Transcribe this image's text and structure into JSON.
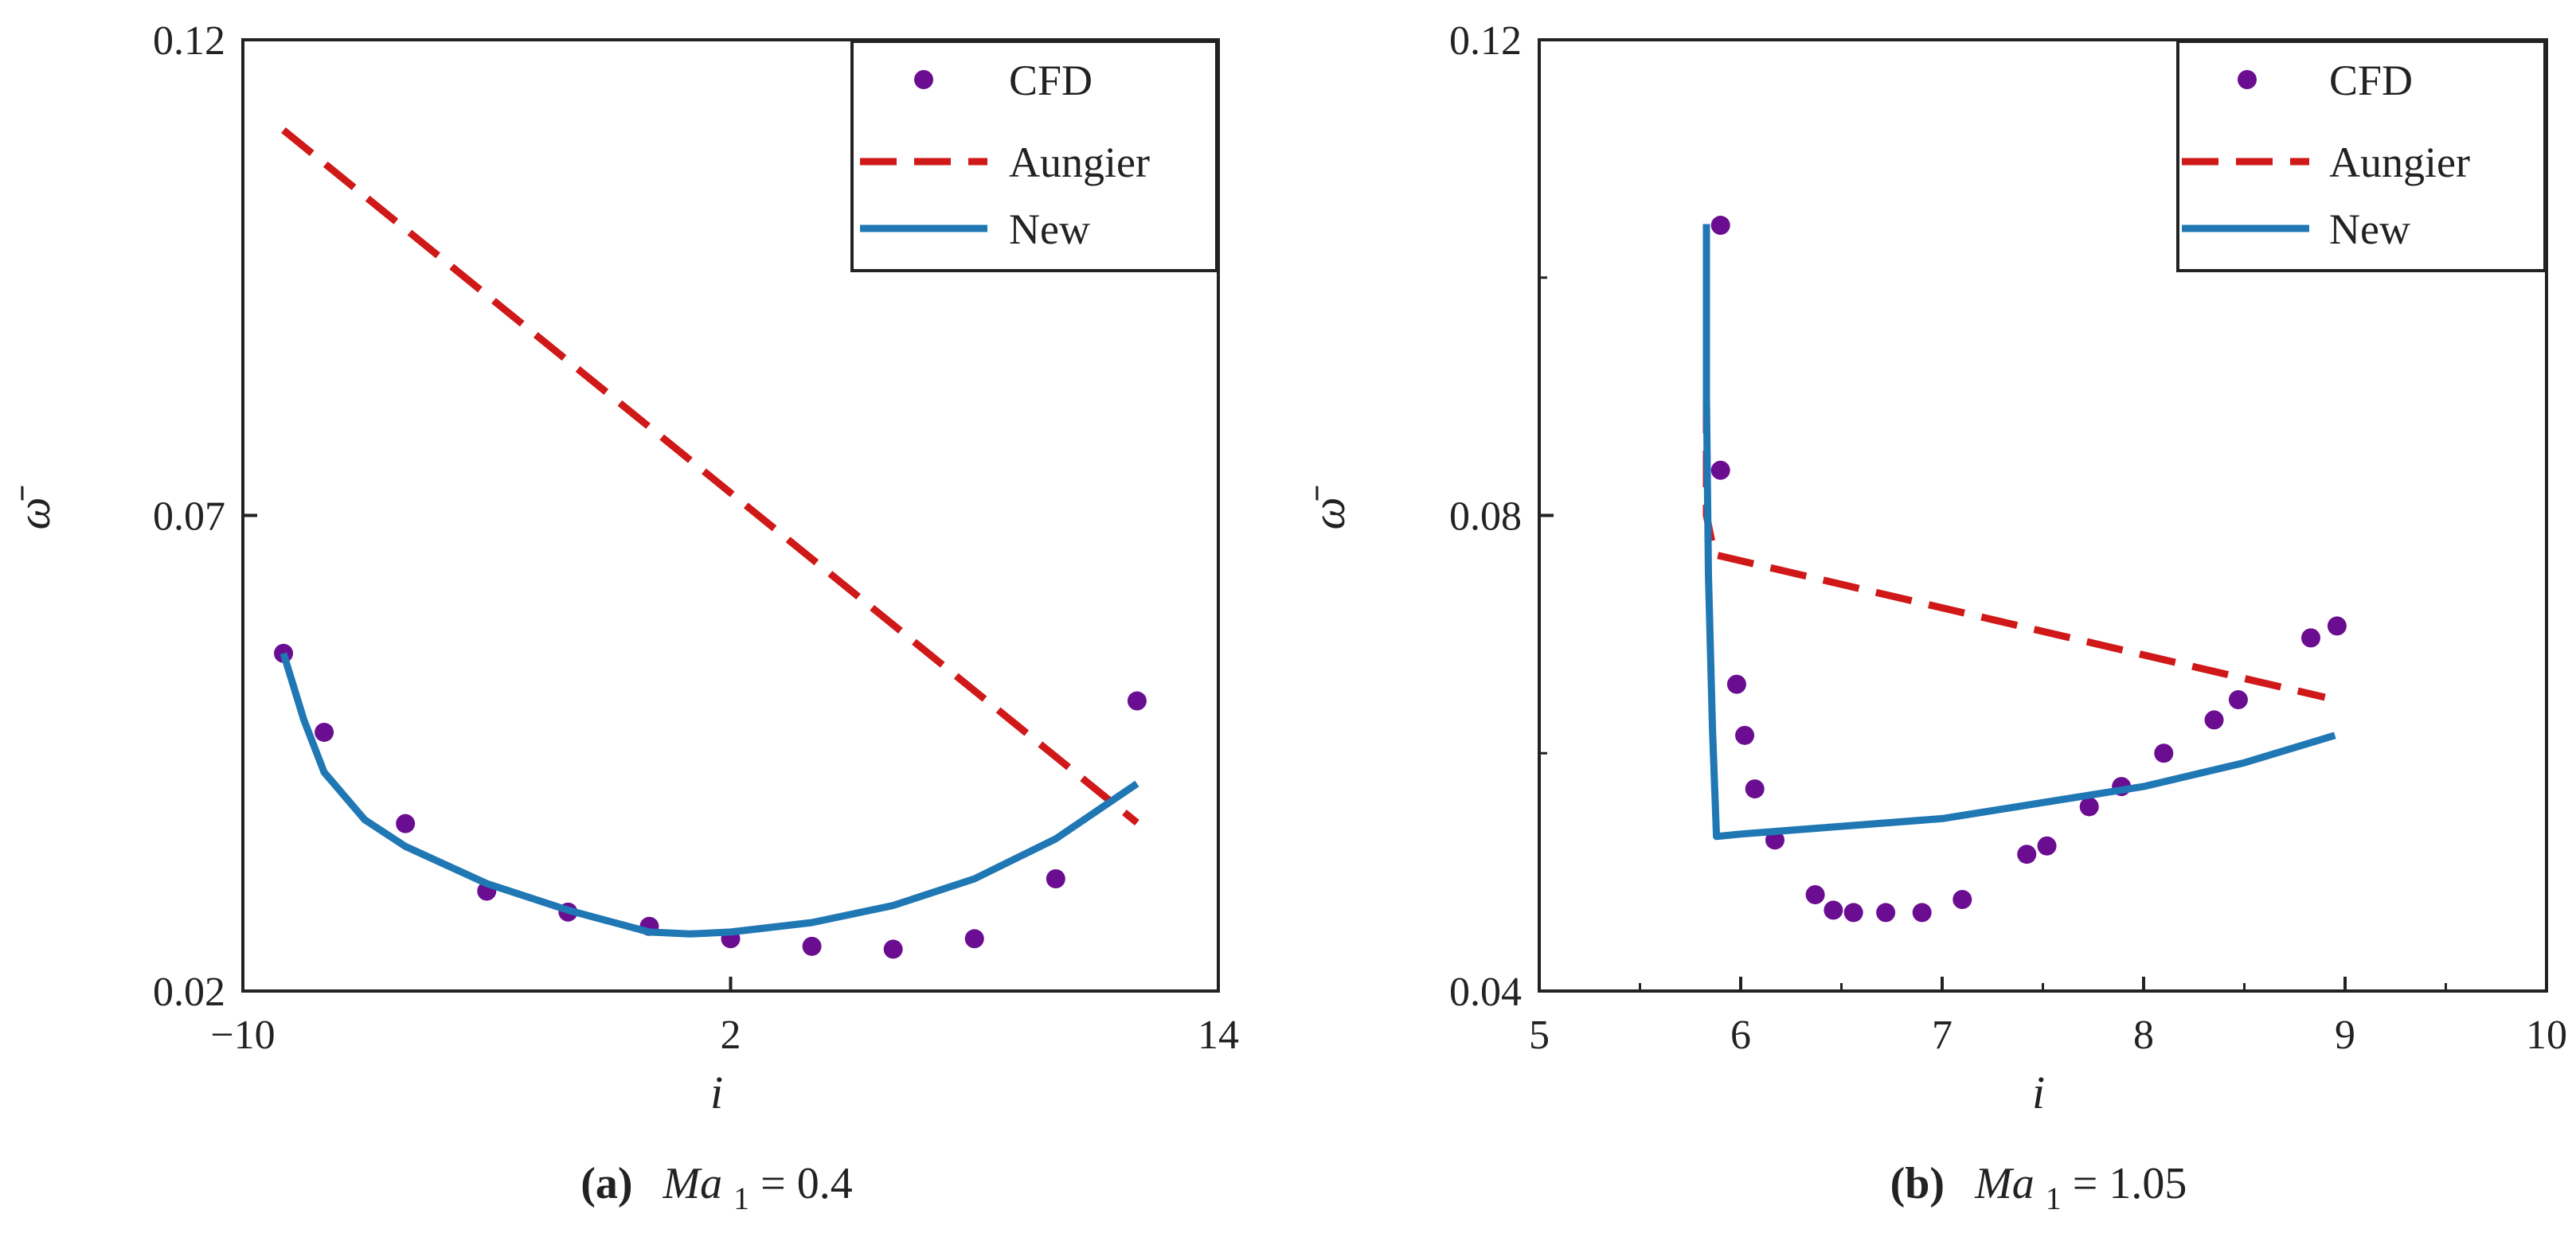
{
  "chart_data": [
    {
      "type": "line",
      "xlabel": "i",
      "ylabel": "ω̄",
      "xlim": [
        -10,
        14
      ],
      "ylim": [
        0.02,
        0.12
      ],
      "x_ticks": [
        "−10",
        "2",
        "14"
      ],
      "y_ticks": [
        "0.02",
        "0.07",
        "0.12"
      ],
      "legend": {
        "placement": "top-right",
        "entries": [
          "CFD",
          "Aungier",
          "New"
        ]
      },
      "caption": {
        "label": "(a)",
        "math": "Ma",
        "sub": "1",
        "value": " = 0.4"
      },
      "series": [
        {
          "name": "CFD",
          "style": "scatter",
          "color": "#6a0d91",
          "points": [
            [
              -9,
              0.0555
            ],
            [
              -8,
              0.0472
            ],
            [
              -6,
              0.0376
            ],
            [
              -4,
              0.0305
            ],
            [
              -2,
              0.0283
            ],
            [
              0,
              0.0268
            ],
            [
              2,
              0.0255
            ],
            [
              4,
              0.0247
            ],
            [
              6,
              0.0244
            ],
            [
              8,
              0.0255
            ],
            [
              10,
              0.0318
            ],
            [
              12,
              0.0505
            ]
          ]
        },
        {
          "name": "Aungier",
          "style": "dashed",
          "color": "#d01818",
          "points": [
            [
              -9,
              0.1105
            ],
            [
              12,
              0.0377
            ]
          ]
        },
        {
          "name": "New",
          "style": "solid",
          "color": "#1f77b4",
          "points": [
            [
              -9,
              0.0555
            ],
            [
              -8.5,
              0.0485
            ],
            [
              -8,
              0.043
            ],
            [
              -7,
              0.038
            ],
            [
              -6,
              0.0352
            ],
            [
              -4,
              0.0313
            ],
            [
              -2,
              0.0285
            ],
            [
              0,
              0.0262
            ],
            [
              1,
              0.026
            ],
            [
              2,
              0.0262
            ],
            [
              4,
              0.0272
            ],
            [
              6,
              0.029
            ],
            [
              8,
              0.0318
            ],
            [
              10,
              0.036
            ],
            [
              12,
              0.0418
            ]
          ]
        }
      ]
    },
    {
      "type": "line",
      "xlabel": "i",
      "ylabel": "ω̄",
      "xlim": [
        5,
        10
      ],
      "ylim": [
        0.04,
        0.12
      ],
      "x_ticks": [
        "5",
        "6",
        "7",
        "8",
        "9",
        "10"
      ],
      "y_ticks": [
        "0.04",
        "0.08",
        "0.12"
      ],
      "legend": {
        "placement": "top-right",
        "entries": [
          "CFD",
          "Aungier",
          "New"
        ]
      },
      "caption": {
        "label": "(b)",
        "math": "Ma",
        "sub": "1",
        "value": " = 1.05"
      },
      "series": [
        {
          "name": "CFD",
          "style": "scatter",
          "color": "#6a0d91",
          "points": [
            [
              5.9,
              0.1044
            ],
            [
              5.9,
              0.0838
            ],
            [
              5.98,
              0.0658
            ],
            [
              6.02,
              0.0615
            ],
            [
              6.07,
              0.057
            ],
            [
              6.17,
              0.0527
            ],
            [
              6.37,
              0.0481
            ],
            [
              6.46,
              0.0468
            ],
            [
              6.56,
              0.0466
            ],
            [
              6.72,
              0.0466
            ],
            [
              6.9,
              0.0466
            ],
            [
              7.1,
              0.0477
            ],
            [
              7.42,
              0.0515
            ],
            [
              7.52,
              0.0522
            ],
            [
              7.73,
              0.0555
            ],
            [
              7.89,
              0.0572
            ],
            [
              8.1,
              0.06
            ],
            [
              8.35,
              0.0628
            ],
            [
              8.47,
              0.0645
            ],
            [
              8.83,
              0.0697
            ],
            [
              8.96,
              0.0707
            ]
          ]
        },
        {
          "name": "Aungier",
          "style": "dashed",
          "color": "#d01818",
          "points": [
            [
              5.83,
              0.09
            ],
            [
              5.83,
              0.08
            ],
            [
              5.87,
              0.0767
            ],
            [
              8.9,
              0.0647
            ]
          ]
        },
        {
          "name": "New",
          "style": "solid",
          "color": "#1f77b4",
          "points": [
            [
              5.83,
              0.1045
            ],
            [
              5.83,
              0.09
            ],
            [
              5.84,
              0.075
            ],
            [
              5.86,
              0.062
            ],
            [
              5.88,
              0.053
            ],
            [
              6.0,
              0.0532
            ],
            [
              7.0,
              0.0545
            ],
            [
              8.0,
              0.0572
            ],
            [
              8.5,
              0.0592
            ],
            [
              8.95,
              0.0615
            ]
          ]
        }
      ]
    }
  ]
}
